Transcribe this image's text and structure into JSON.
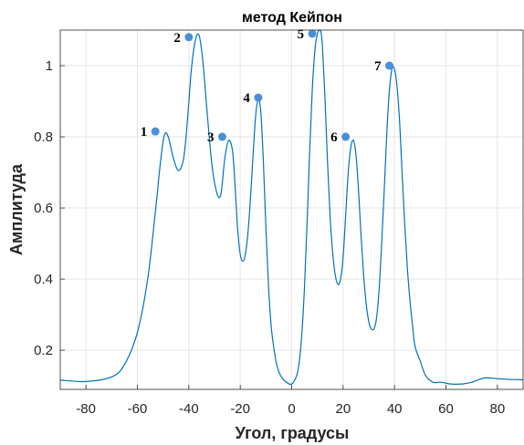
{
  "chart_data": {
    "type": "line",
    "title": "метод Кейпон",
    "xlabel": "Угол, градусы",
    "ylabel": "Амплитуда",
    "xlim": [
      -90,
      90
    ],
    "ylim": [
      0.09,
      1.1
    ],
    "xticks": [
      -80,
      -60,
      -40,
      -20,
      0,
      20,
      40,
      60,
      80
    ],
    "yticks": [
      0.2,
      0.4,
      0.6,
      0.8,
      1
    ],
    "ytick_labels": [
      "0.2",
      "0.4",
      "0.6",
      "0.8",
      "1"
    ],
    "grid": true,
    "series": [
      {
        "color": "#0072BD",
        "x": [
          -90,
          -80,
          -70,
          -65,
          -60,
          -56,
          -53,
          -51,
          -49.5,
          -48,
          -46,
          -44,
          -42,
          -40.5,
          -39,
          -37.5,
          -36,
          -34.5,
          -33,
          -31,
          -29,
          -27.5,
          -26,
          -24.5,
          -23,
          -22,
          -21,
          -20,
          -19,
          -18,
          -17,
          -16,
          -15,
          -14,
          -13,
          -12,
          -11,
          -10,
          -9,
          -8,
          -7,
          -6,
          -5,
          -4,
          -2,
          0,
          2,
          3,
          4,
          5,
          6,
          7,
          8,
          9,
          10,
          11,
          11.5,
          12,
          13,
          14,
          15,
          16,
          17,
          18,
          19,
          20,
          21,
          22,
          23,
          24,
          25,
          26,
          27,
          28,
          29,
          30,
          31,
          32,
          33,
          34,
          35,
          36,
          37,
          38,
          39,
          40,
          41,
          42,
          43,
          44,
          45,
          46,
          47,
          48,
          50,
          52,
          55,
          58,
          62,
          66,
          70,
          75,
          80,
          85,
          90
        ],
        "y": [
          0.116,
          0.112,
          0.125,
          0.16,
          0.25,
          0.4,
          0.59,
          0.73,
          0.805,
          0.8,
          0.74,
          0.705,
          0.74,
          0.85,
          0.99,
          1.07,
          1.085,
          1.01,
          0.88,
          0.72,
          0.64,
          0.64,
          0.74,
          0.79,
          0.76,
          0.66,
          0.54,
          0.47,
          0.45,
          0.47,
          0.53,
          0.63,
          0.75,
          0.86,
          0.905,
          0.87,
          0.73,
          0.54,
          0.38,
          0.27,
          0.21,
          0.165,
          0.14,
          0.125,
          0.11,
          0.105,
          0.13,
          0.17,
          0.25,
          0.38,
          0.56,
          0.76,
          0.93,
          1.04,
          1.09,
          1.1,
          1.09,
          1.05,
          0.9,
          0.72,
          0.57,
          0.47,
          0.41,
          0.385,
          0.4,
          0.46,
          0.58,
          0.7,
          0.77,
          0.79,
          0.75,
          0.65,
          0.52,
          0.41,
          0.33,
          0.28,
          0.26,
          0.26,
          0.29,
          0.37,
          0.5,
          0.65,
          0.81,
          0.93,
          0.99,
          0.99,
          0.94,
          0.84,
          0.69,
          0.55,
          0.43,
          0.34,
          0.27,
          0.21,
          0.17,
          0.13,
          0.11,
          0.11,
          0.105,
          0.105,
          0.11,
          0.122,
          0.12,
          0.118,
          0.117
        ]
      }
    ],
    "annotations": [
      {
        "label": "1",
        "x": -53,
        "y": 0.815
      },
      {
        "label": "2",
        "x": -40,
        "y": 1.08
      },
      {
        "label": "3",
        "x": -27,
        "y": 0.8
      },
      {
        "label": "4",
        "x": -13,
        "y": 0.91
      },
      {
        "label": "5",
        "x": 8,
        "y": 1.09
      },
      {
        "label": "6",
        "x": 21,
        "y": 0.8
      },
      {
        "label": "7",
        "x": 38,
        "y": 1.0
      }
    ],
    "marker_color": "#4A90D9"
  }
}
